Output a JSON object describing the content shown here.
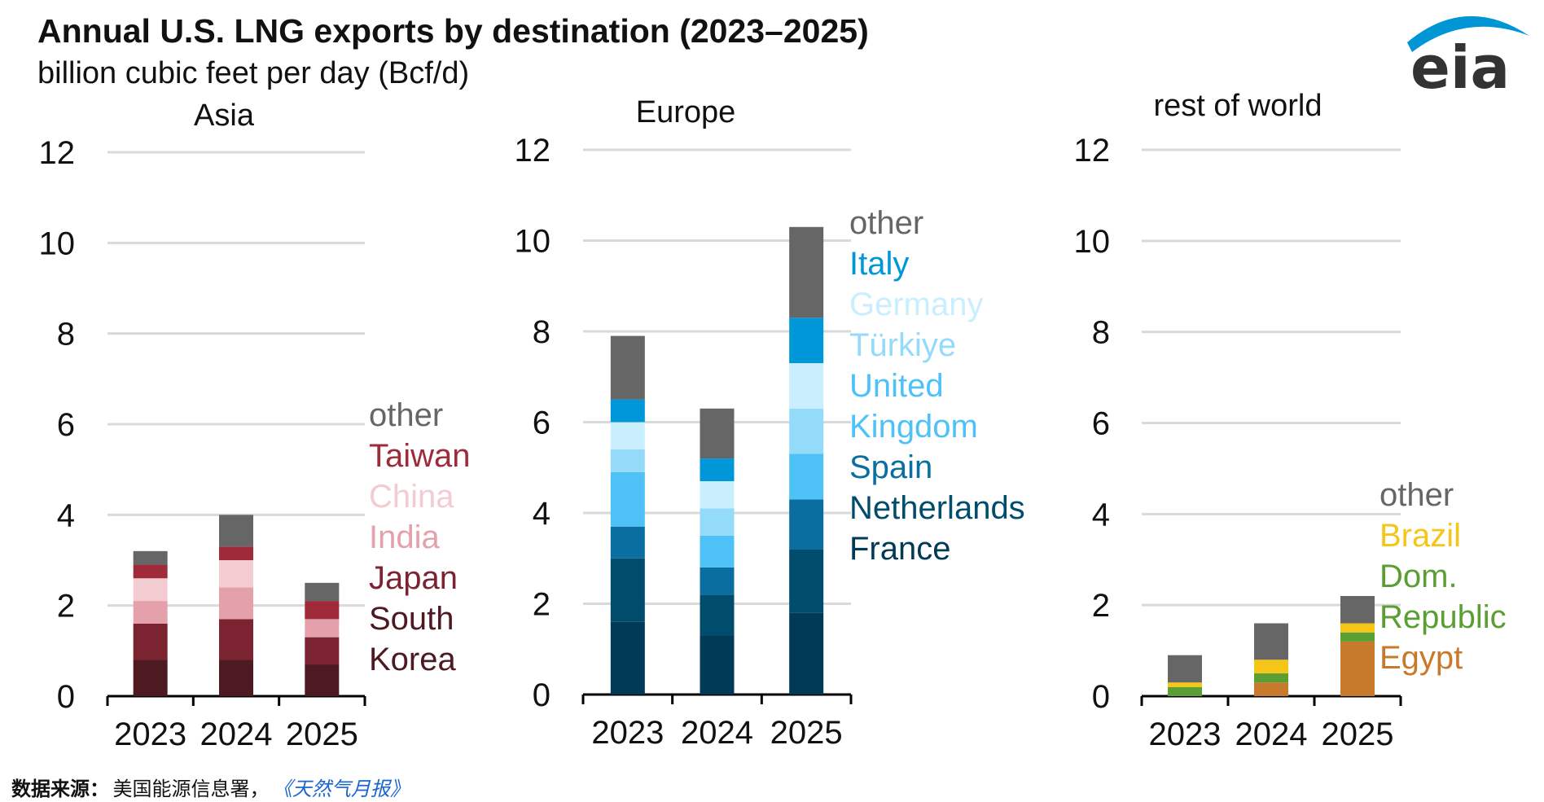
{
  "header": {
    "title": "Annual U.S. LNG exports by destination (2023–2025)",
    "subtitle": "billion cubic feet per day (Bcf/d)"
  },
  "logo": {
    "text": "eia",
    "swoosh_color": "#0096d6"
  },
  "source": {
    "label": "数据来源：",
    "text": "美国能源信息署，",
    "publication": "《天然气月报》"
  },
  "colors": {
    "grid": "#d9d9d9",
    "axis": "#000000"
  },
  "chart_data": [
    {
      "type": "bar",
      "stacked": true,
      "title": "Asia",
      "categories": [
        "2023",
        "2024",
        "2025"
      ],
      "ylim": [
        0,
        12
      ],
      "yticks": [
        0,
        2,
        4,
        6,
        8,
        10,
        12
      ],
      "series": [
        {
          "name": "South Korea",
          "color": "#4d1a22",
          "values": [
            0.8,
            0.8,
            0.7
          ]
        },
        {
          "name": "Japan",
          "color": "#7b2331",
          "values": [
            0.8,
            0.9,
            0.6
          ]
        },
        {
          "name": "India",
          "color": "#e5a1ab",
          "values": [
            0.5,
            0.7,
            0.4
          ]
        },
        {
          "name": "China",
          "color": "#f3ccd2",
          "values": [
            0.5,
            0.6,
            0.0
          ]
        },
        {
          "name": "Taiwan",
          "color": "#9e2a3a",
          "values": [
            0.3,
            0.3,
            0.4
          ]
        },
        {
          "name": "other",
          "color": "#666666",
          "values": [
            0.3,
            0.7,
            0.4
          ]
        }
      ],
      "legend_labels": [
        "other",
        "Taiwan",
        "China",
        "India",
        "Japan",
        "South",
        "Korea"
      ],
      "legend_colors": [
        "#666666",
        "#9e2a3a",
        "#f3ccd2",
        "#e5a1ab",
        "#7b2331",
        "#4d1a22",
        "#4d1a22"
      ]
    },
    {
      "type": "bar",
      "stacked": true,
      "title": "Europe",
      "categories": [
        "2023",
        "2024",
        "2025"
      ],
      "ylim": [
        0,
        12
      ],
      "yticks": [
        0,
        2,
        4,
        6,
        8,
        10,
        12
      ],
      "series": [
        {
          "name": "France",
          "color": "#003a57",
          "values": [
            1.6,
            1.3,
            1.8
          ]
        },
        {
          "name": "Netherlands",
          "color": "#004c6d",
          "values": [
            1.4,
            0.9,
            1.4
          ]
        },
        {
          "name": "Spain",
          "color": "#0a6fa0",
          "values": [
            0.7,
            0.6,
            1.1
          ]
        },
        {
          "name": "United Kingdom",
          "color": "#4ec2f7",
          "values": [
            1.2,
            0.7,
            1.0
          ]
        },
        {
          "name": "Türkiye",
          "color": "#94daf9",
          "values": [
            0.5,
            0.6,
            1.0
          ]
        },
        {
          "name": "Germany",
          "color": "#c9eefd",
          "values": [
            0.6,
            0.6,
            1.0
          ]
        },
        {
          "name": "Italy",
          "color": "#0097d8",
          "values": [
            0.5,
            0.5,
            1.0
          ]
        },
        {
          "name": "other",
          "color": "#666666",
          "values": [
            1.4,
            1.1,
            2.0
          ]
        }
      ],
      "legend_labels": [
        "other",
        "Italy",
        "Germany",
        "Türkiye",
        "United",
        "Kingdom",
        "Spain",
        "Netherlands",
        "France"
      ],
      "legend_colors": [
        "#666666",
        "#0097d8",
        "#c9eefd",
        "#94daf9",
        "#4ec2f7",
        "#4ec2f7",
        "#0a6fa0",
        "#004c6d",
        "#003a57"
      ]
    },
    {
      "type": "bar",
      "stacked": true,
      "title": "rest of world",
      "categories": [
        "2023",
        "2024",
        "2025"
      ],
      "ylim": [
        0,
        12
      ],
      "yticks": [
        0,
        2,
        4,
        6,
        8,
        10,
        12
      ],
      "series": [
        {
          "name": "Egypt",
          "color": "#c87a2c",
          "values": [
            0.0,
            0.3,
            1.2
          ]
        },
        {
          "name": "Dom. Republic",
          "color": "#5a9e34",
          "values": [
            0.2,
            0.2,
            0.2
          ]
        },
        {
          "name": "Brazil",
          "color": "#f5c518",
          "values": [
            0.1,
            0.3,
            0.2
          ]
        },
        {
          "name": "other",
          "color": "#666666",
          "values": [
            0.6,
            0.8,
            0.6
          ]
        }
      ],
      "legend_labels": [
        "other",
        "Brazil",
        "Dom.",
        "Republic",
        "Egypt"
      ],
      "legend_colors": [
        "#666666",
        "#f5c518",
        "#5a9e34",
        "#5a9e34",
        "#c87a2c"
      ]
    }
  ]
}
